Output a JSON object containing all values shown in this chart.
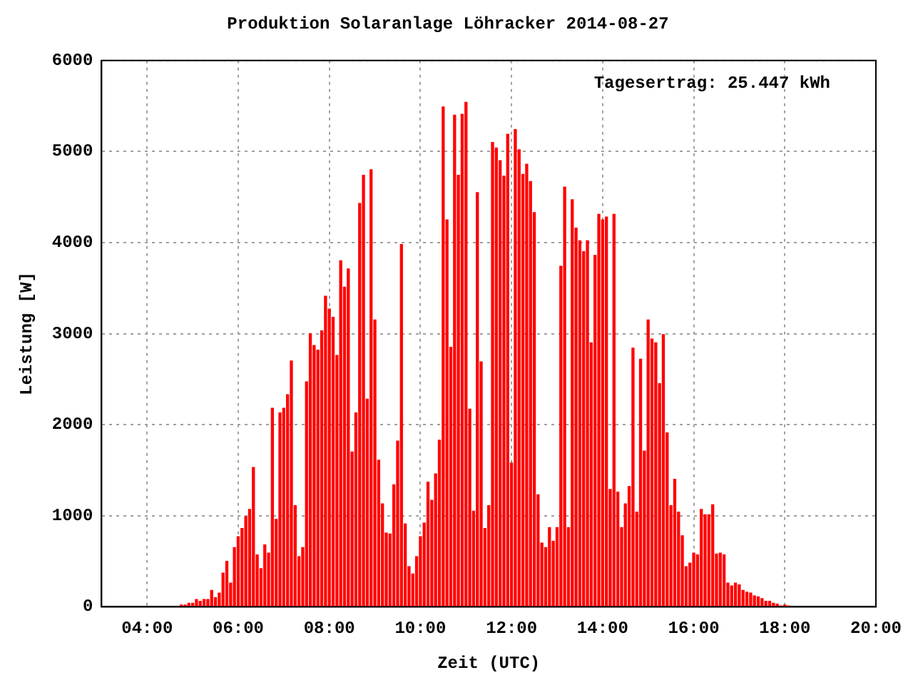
{
  "chart_data": {
    "type": "bar",
    "title": "Produktion Solaranlage Löhracker 2014-08-27",
    "xlabel": "Zeit (UTC)",
    "ylabel": "Leistung [W]",
    "annotations": [
      "Tagesertrag: 25.447 kWh"
    ],
    "x": [
      4.75,
      4.8333,
      4.9167,
      5,
      5.0833,
      5.1667,
      5.25,
      5.3333,
      5.4167,
      5.5,
      5.5833,
      5.6667,
      5.75,
      5.8333,
      5.9167,
      6,
      6.0833,
      6.1667,
      6.25,
      6.3333,
      6.4167,
      6.5,
      6.5833,
      6.6667,
      6.75,
      6.8333,
      6.9167,
      7,
      7.0833,
      7.1667,
      7.25,
      7.3333,
      7.4167,
      7.5,
      7.5833,
      7.6667,
      7.75,
      7.8333,
      7.9167,
      8,
      8.0833,
      8.1667,
      8.25,
      8.3333,
      8.4167,
      8.5,
      8.5833,
      8.6667,
      8.75,
      8.8333,
      8.9167,
      9,
      9.0833,
      9.1667,
      9.25,
      9.3333,
      9.4167,
      9.5,
      9.5833,
      9.6667,
      9.75,
      9.8333,
      9.9167,
      10,
      10.0833,
      10.1667,
      10.25,
      10.3333,
      10.4167,
      10.5,
      10.5833,
      10.6667,
      10.75,
      10.8333,
      10.9167,
      11,
      11.0833,
      11.1667,
      11.25,
      11.3333,
      11.4167,
      11.5,
      11.5833,
      11.6667,
      11.75,
      11.8333,
      11.9167,
      12,
      12.0833,
      12.1667,
      12.25,
      12.3333,
      12.4167,
      12.5,
      12.5833,
      12.6667,
      12.75,
      12.8333,
      12.9167,
      13,
      13.0833,
      13.1667,
      13.25,
      13.3333,
      13.4167,
      13.5,
      13.5833,
      13.6667,
      13.75,
      13.8333,
      13.9167,
      14,
      14.0833,
      14.1667,
      14.25,
      14.3333,
      14.4167,
      14.5,
      14.5833,
      14.6667,
      14.75,
      14.8333,
      14.9167,
      15,
      15.0833,
      15.1667,
      15.25,
      15.3333,
      15.4167,
      15.5,
      15.5833,
      15.6667,
      15.75,
      15.8333,
      15.9167,
      16,
      16.0833,
      16.1667,
      16.25,
      16.3333,
      16.4167,
      16.5,
      16.5833,
      16.6667,
      16.75,
      16.8333,
      16.9167,
      17,
      17.0833,
      17.1667,
      17.25,
      17.3333,
      17.4167,
      17.5,
      17.5833,
      17.6667,
      17.75,
      17.8333,
      17.9167,
      18,
      18.0833
    ],
    "series": [
      {
        "color": "#ff0000",
        "values": [
          20,
          20,
          40,
          40,
          80,
          60,
          80,
          80,
          180,
          100,
          150,
          370,
          500,
          260,
          650,
          770,
          860,
          990,
          1070,
          1530,
          570,
          420,
          680,
          590,
          2180,
          960,
          2130,
          2180,
          2330,
          2700,
          1110,
          550,
          650,
          2470,
          3000,
          2870,
          2820,
          3030,
          3410,
          3270,
          3180,
          2760,
          3800,
          3510,
          3710,
          1700,
          2130,
          4430,
          4740,
          2280,
          4800,
          3150,
          1610,
          1130,
          810,
          800,
          1340,
          1820,
          3980,
          910,
          440,
          360,
          550,
          770,
          920,
          1370,
          1170,
          1460,
          1830,
          5490,
          4250,
          2850,
          5400,
          4740,
          5410,
          5540,
          2170,
          1050,
          4550,
          2690,
          860,
          1110,
          5100,
          5040,
          4900,
          4730,
          5190,
          1580,
          5240,
          5020,
          4750,
          4860,
          4670,
          4330,
          1230,
          700,
          650,
          870,
          720,
          870,
          3740,
          4610,
          870,
          4470,
          4160,
          4020,
          3900,
          4020,
          2900,
          3860,
          4310,
          4250,
          4280,
          1290,
          4310,
          1260,
          870,
          1130,
          1320,
          2840,
          1040,
          2720,
          1710,
          3150,
          2940,
          2900,
          2450,
          2990,
          1910,
          1110,
          1400,
          1040,
          780,
          440,
          480,
          590,
          570,
          1070,
          1010,
          1010,
          1120,
          580,
          590,
          570,
          260,
          230,
          260,
          240,
          180,
          160,
          150,
          120,
          110,
          90,
          60,
          60,
          40,
          30,
          10,
          20,
          10
        ]
      }
    ],
    "xlim": [
      3,
      20
    ],
    "xticks": [
      {
        "value": 4,
        "label": "04:00"
      },
      {
        "value": 6,
        "label": "06:00"
      },
      {
        "value": 8,
        "label": "08:00"
      },
      {
        "value": 10,
        "label": "10:00"
      },
      {
        "value": 12,
        "label": "12:00"
      },
      {
        "value": 14,
        "label": "14:00"
      },
      {
        "value": 16,
        "label": "16:00"
      },
      {
        "value": 18,
        "label": "18:00"
      },
      {
        "value": 20,
        "label": "20:00"
      }
    ],
    "ylim": [
      0,
      6000
    ],
    "yticks": [
      0,
      1000,
      2000,
      3000,
      4000,
      5000,
      6000
    ],
    "grid": true,
    "legend": false
  }
}
